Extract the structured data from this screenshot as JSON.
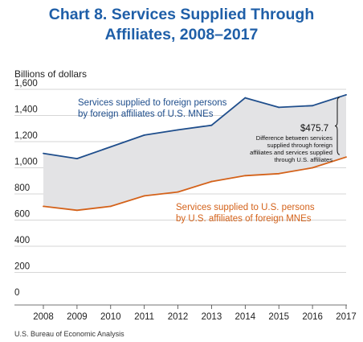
{
  "chart_data": {
    "type": "line",
    "title_lines": [
      "Chart 8. Services Supplied Through",
      "Affiliates, 2008–2017"
    ],
    "ylabel": "Billions of dollars",
    "ylim": [
      0,
      1600
    ],
    "yticks": [
      "0",
      "200",
      "400",
      "600",
      "800",
      "1,000",
      "1,200",
      "1,400",
      "1,600"
    ],
    "ytick_values": [
      0,
      200,
      400,
      600,
      800,
      1000,
      1200,
      1400,
      1600
    ],
    "categories": [
      "2008",
      "2009",
      "2010",
      "2011",
      "2012",
      "2013",
      "2014",
      "2015",
      "2016",
      "2017"
    ],
    "series": [
      {
        "label_lines": [
          "Services supplied to foreign persons",
          "by foreign affiliates of U.S. MNEs"
        ],
        "color": "#1f4e8c",
        "values": [
          1110,
          1070,
          1160,
          1250,
          1290,
          1325,
          1535,
          1462,
          1475,
          1558
        ]
      },
      {
        "label_lines": [
          "Services supplied to U.S. persons",
          "by U.S. affiliates of foreign MNEs"
        ],
        "color": "#d4621a",
        "values": [
          705,
          675,
          705,
          785,
          815,
          895,
          940,
          955,
          1000,
          1082
        ]
      }
    ],
    "fill_color": "#e3e3e5",
    "difference": {
      "value": "$475.7",
      "note_lines": [
        "Difference between services",
        "supplied through foreign",
        "affiliates and services supplied",
        "through U.S. affiliates"
      ]
    },
    "grid": true,
    "legend": "inline annotations"
  },
  "source": "U.S. Bureau of Economic Analysis"
}
